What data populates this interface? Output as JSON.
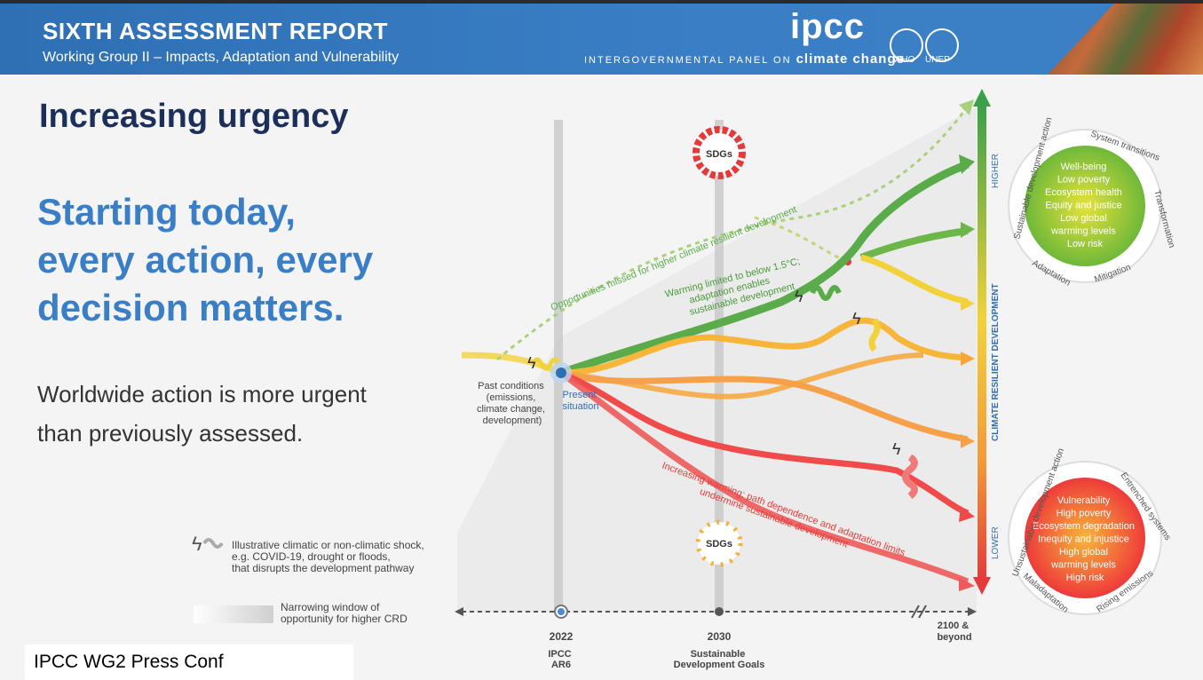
{
  "header": {
    "title": "SIXTH ASSESSMENT REPORT",
    "subtitle": "Working Group II – Impacts, Adaptation and Vulnerability",
    "logo": "ipcc",
    "org_full_prefix": "INTERGOVERNMENTAL PANEL ON",
    "org_full_emph": "climate change",
    "partner1": "WHO",
    "partner2": "UNEP"
  },
  "slide": {
    "title": "Increasing urgency",
    "headline_lines": [
      "Starting today,",
      "every action, every",
      "decision matters."
    ],
    "body_lines": [
      "Worldwide action is more urgent",
      "than previously assessed."
    ]
  },
  "diagram": {
    "past_conditions": [
      "Past conditions",
      "(emissions,",
      "climate change,",
      "development)"
    ],
    "present": [
      "Present",
      "situation"
    ],
    "missed": "Opportunities missed for higher climate resilient development",
    "warming_limited": [
      "Warming limited to below 1.5°C;",
      "adaptation enables",
      "sustainable development"
    ],
    "increasing_warming": [
      "Increasing warming; path dependence and adaptation limits",
      "undermine sustainable development"
    ],
    "sdgs": "SDGs",
    "axis_higher": "HIGHER",
    "axis_lower": "LOWER",
    "axis_label": "CLIMATE RESILIENT DEVELOPMENT",
    "timeline": [
      {
        "year": "2022",
        "sub": [
          "IPCC",
          "AR6"
        ]
      },
      {
        "year": "2030",
        "sub": [
          "Sustainable",
          "Development Goals"
        ]
      },
      {
        "year": "2100 &",
        "sub": [
          "beyond"
        ]
      }
    ],
    "legend_shock": [
      "Illustrative climatic or non-climatic shock,",
      "e.g. COVID-19, drought or floods,",
      "that disrupts the development pathway"
    ],
    "legend_window": [
      "Narrowing window of",
      "opportunity for higher CRD"
    ],
    "good_outcomes": [
      "Well-being",
      "Low poverty",
      "Ecosystem health",
      "Equity and justice",
      "Low global",
      "warming levels",
      "Low risk"
    ],
    "good_ring": [
      "Sustainable development action",
      "System transitions",
      "Transformation",
      "Mitigation",
      "Adaptation"
    ],
    "bad_outcomes": [
      "Vulnerability",
      "High poverty",
      "Ecosystem degradation",
      "Inequity and injustice",
      "High global",
      "warming levels",
      "High risk"
    ],
    "bad_ring": [
      "Unsustainable development action",
      "Entrenched systems",
      "Rising emissions",
      "Maladaptation"
    ]
  },
  "footer": "IPCC WG2 Press Conf"
}
